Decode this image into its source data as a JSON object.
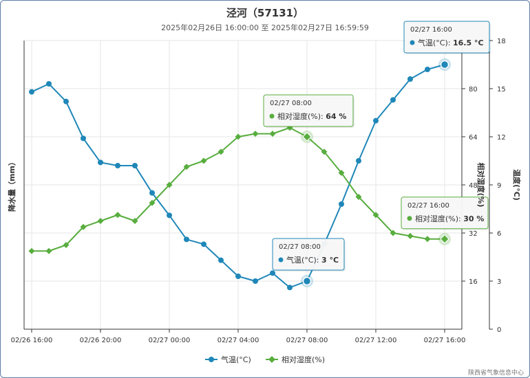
{
  "title": "泾河（57131）",
  "subtitle": "2025年02月26日 16:00:00 至 2025年02月27日 16:59:59",
  "credit": "陕西省气象信息中心",
  "colors": {
    "temp": "#1f87b8",
    "humidity": "#58ad3e",
    "axis": "#333333",
    "grid": "#e6e6e6"
  },
  "chart_data": {
    "type": "line",
    "x": [
      "02/26 16:00",
      "02/26 17:00",
      "02/26 18:00",
      "02/26 19:00",
      "02/26 20:00",
      "02/26 21:00",
      "02/26 22:00",
      "02/26 23:00",
      "02/27 00:00",
      "02/27 01:00",
      "02/27 02:00",
      "02/27 03:00",
      "02/27 04:00",
      "02/27 05:00",
      "02/27 06:00",
      "02/27 07:00",
      "02/27 08:00",
      "02/27 09:00",
      "02/27 10:00",
      "02/27 11:00",
      "02/27 12:00",
      "02/27 13:00",
      "02/27 14:00",
      "02/27 15:00",
      "02/27 16:00"
    ],
    "x_tick_labels": [
      "02/26 16:00",
      "02/26 20:00",
      "02/27 00:00",
      "02/27 04:00",
      "02/27 08:00",
      "02/27 12:00",
      "02/27 16:00"
    ],
    "axes": {
      "left": {
        "title": "降水量（mm）",
        "ticks": []
      },
      "right_humidity": {
        "title": "相对湿度(%)",
        "ylim": [
          0,
          96
        ],
        "ticks": [
          "16",
          "32",
          "48",
          "64",
          "80"
        ]
      },
      "right_temp": {
        "title": "温度(°C)",
        "ylim": [
          0,
          18
        ],
        "ticks": [
          "0",
          "3",
          "6",
          "9",
          "12",
          "15",
          "18"
        ]
      }
    },
    "series": [
      {
        "name": "气温(°C)",
        "axis": "temp",
        "marker": "circle",
        "values": [
          14.8,
          15.3,
          14.2,
          11.9,
          10.4,
          10.2,
          10.2,
          8.5,
          7.1,
          5.6,
          5.3,
          4.3,
          3.3,
          3.0,
          3.5,
          2.6,
          3.0,
          5.3,
          7.8,
          10.5,
          13.0,
          14.3,
          15.6,
          16.2,
          16.5
        ]
      },
      {
        "name": "相对湿度(%)",
        "axis": "humidity",
        "marker": "diamond",
        "values": [
          26,
          26,
          28,
          34,
          36,
          38,
          36,
          42,
          48,
          54,
          56,
          59,
          64,
          65,
          65,
          67,
          64,
          59,
          52,
          44,
          38,
          32,
          31,
          30,
          30
        ]
      }
    ],
    "tooltips": [
      {
        "time": "02/27 16:00",
        "label": "气温(°C): ",
        "value": "16.5 °C",
        "series": 0,
        "index": 24
      },
      {
        "time": "02/27 08:00",
        "label": "相对湿度(%): ",
        "value": "64 %",
        "series": 1,
        "index": 16
      },
      {
        "time": "02/27 08:00",
        "label": "气温(°C): ",
        "value": "3 °C",
        "series": 0,
        "index": 16
      },
      {
        "time": "02/27 16:00",
        "label": "相对湿度(%): ",
        "value": "30 %",
        "series": 1,
        "index": 24
      }
    ],
    "legend": [
      "气温(°C)",
      "相对湿度(%)"
    ],
    "legend_position": "bottom-center",
    "grid": true
  }
}
